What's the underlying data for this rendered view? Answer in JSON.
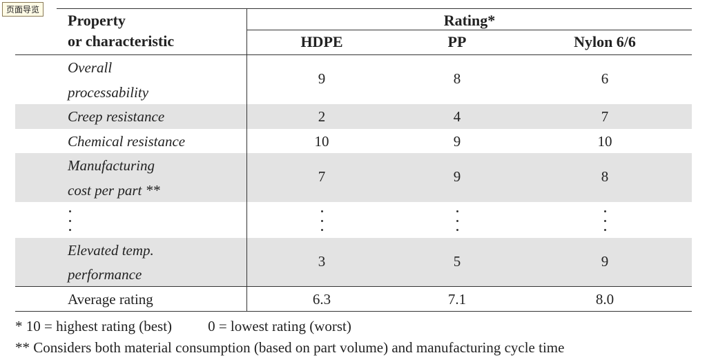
{
  "badge": "页面导览",
  "header": {
    "property_line1": "Property",
    "property_line2": "or characteristic",
    "rating": "Rating*",
    "columns": [
      "HDPE",
      "PP",
      "Nylon 6/6"
    ]
  },
  "rows": [
    {
      "property": [
        "Overall",
        "processability"
      ],
      "values": [
        "9",
        "8",
        "6"
      ]
    },
    {
      "property": [
        "Creep resistance"
      ],
      "values": [
        "2",
        "4",
        "7"
      ]
    },
    {
      "property": [
        "Chemical resistance"
      ],
      "values": [
        "10",
        "9",
        "10"
      ]
    },
    {
      "property": [
        "Manufacturing",
        "cost per part **"
      ],
      "values": [
        "7",
        "9",
        "8"
      ]
    },
    {
      "property": [
        "Elevated temp.",
        "performance"
      ],
      "values": [
        "3",
        "5",
        "9"
      ]
    }
  ],
  "average": {
    "label": "Average rating",
    "values": [
      "6.3",
      "7.1",
      "8.0"
    ]
  },
  "footnotes": {
    "note1_a": "* 10 = highest rating (best)",
    "note1_b": "0 = lowest rating (worst)",
    "note2": "** Considers both material consumption (based on part volume) and manufacturing cycle time"
  }
}
